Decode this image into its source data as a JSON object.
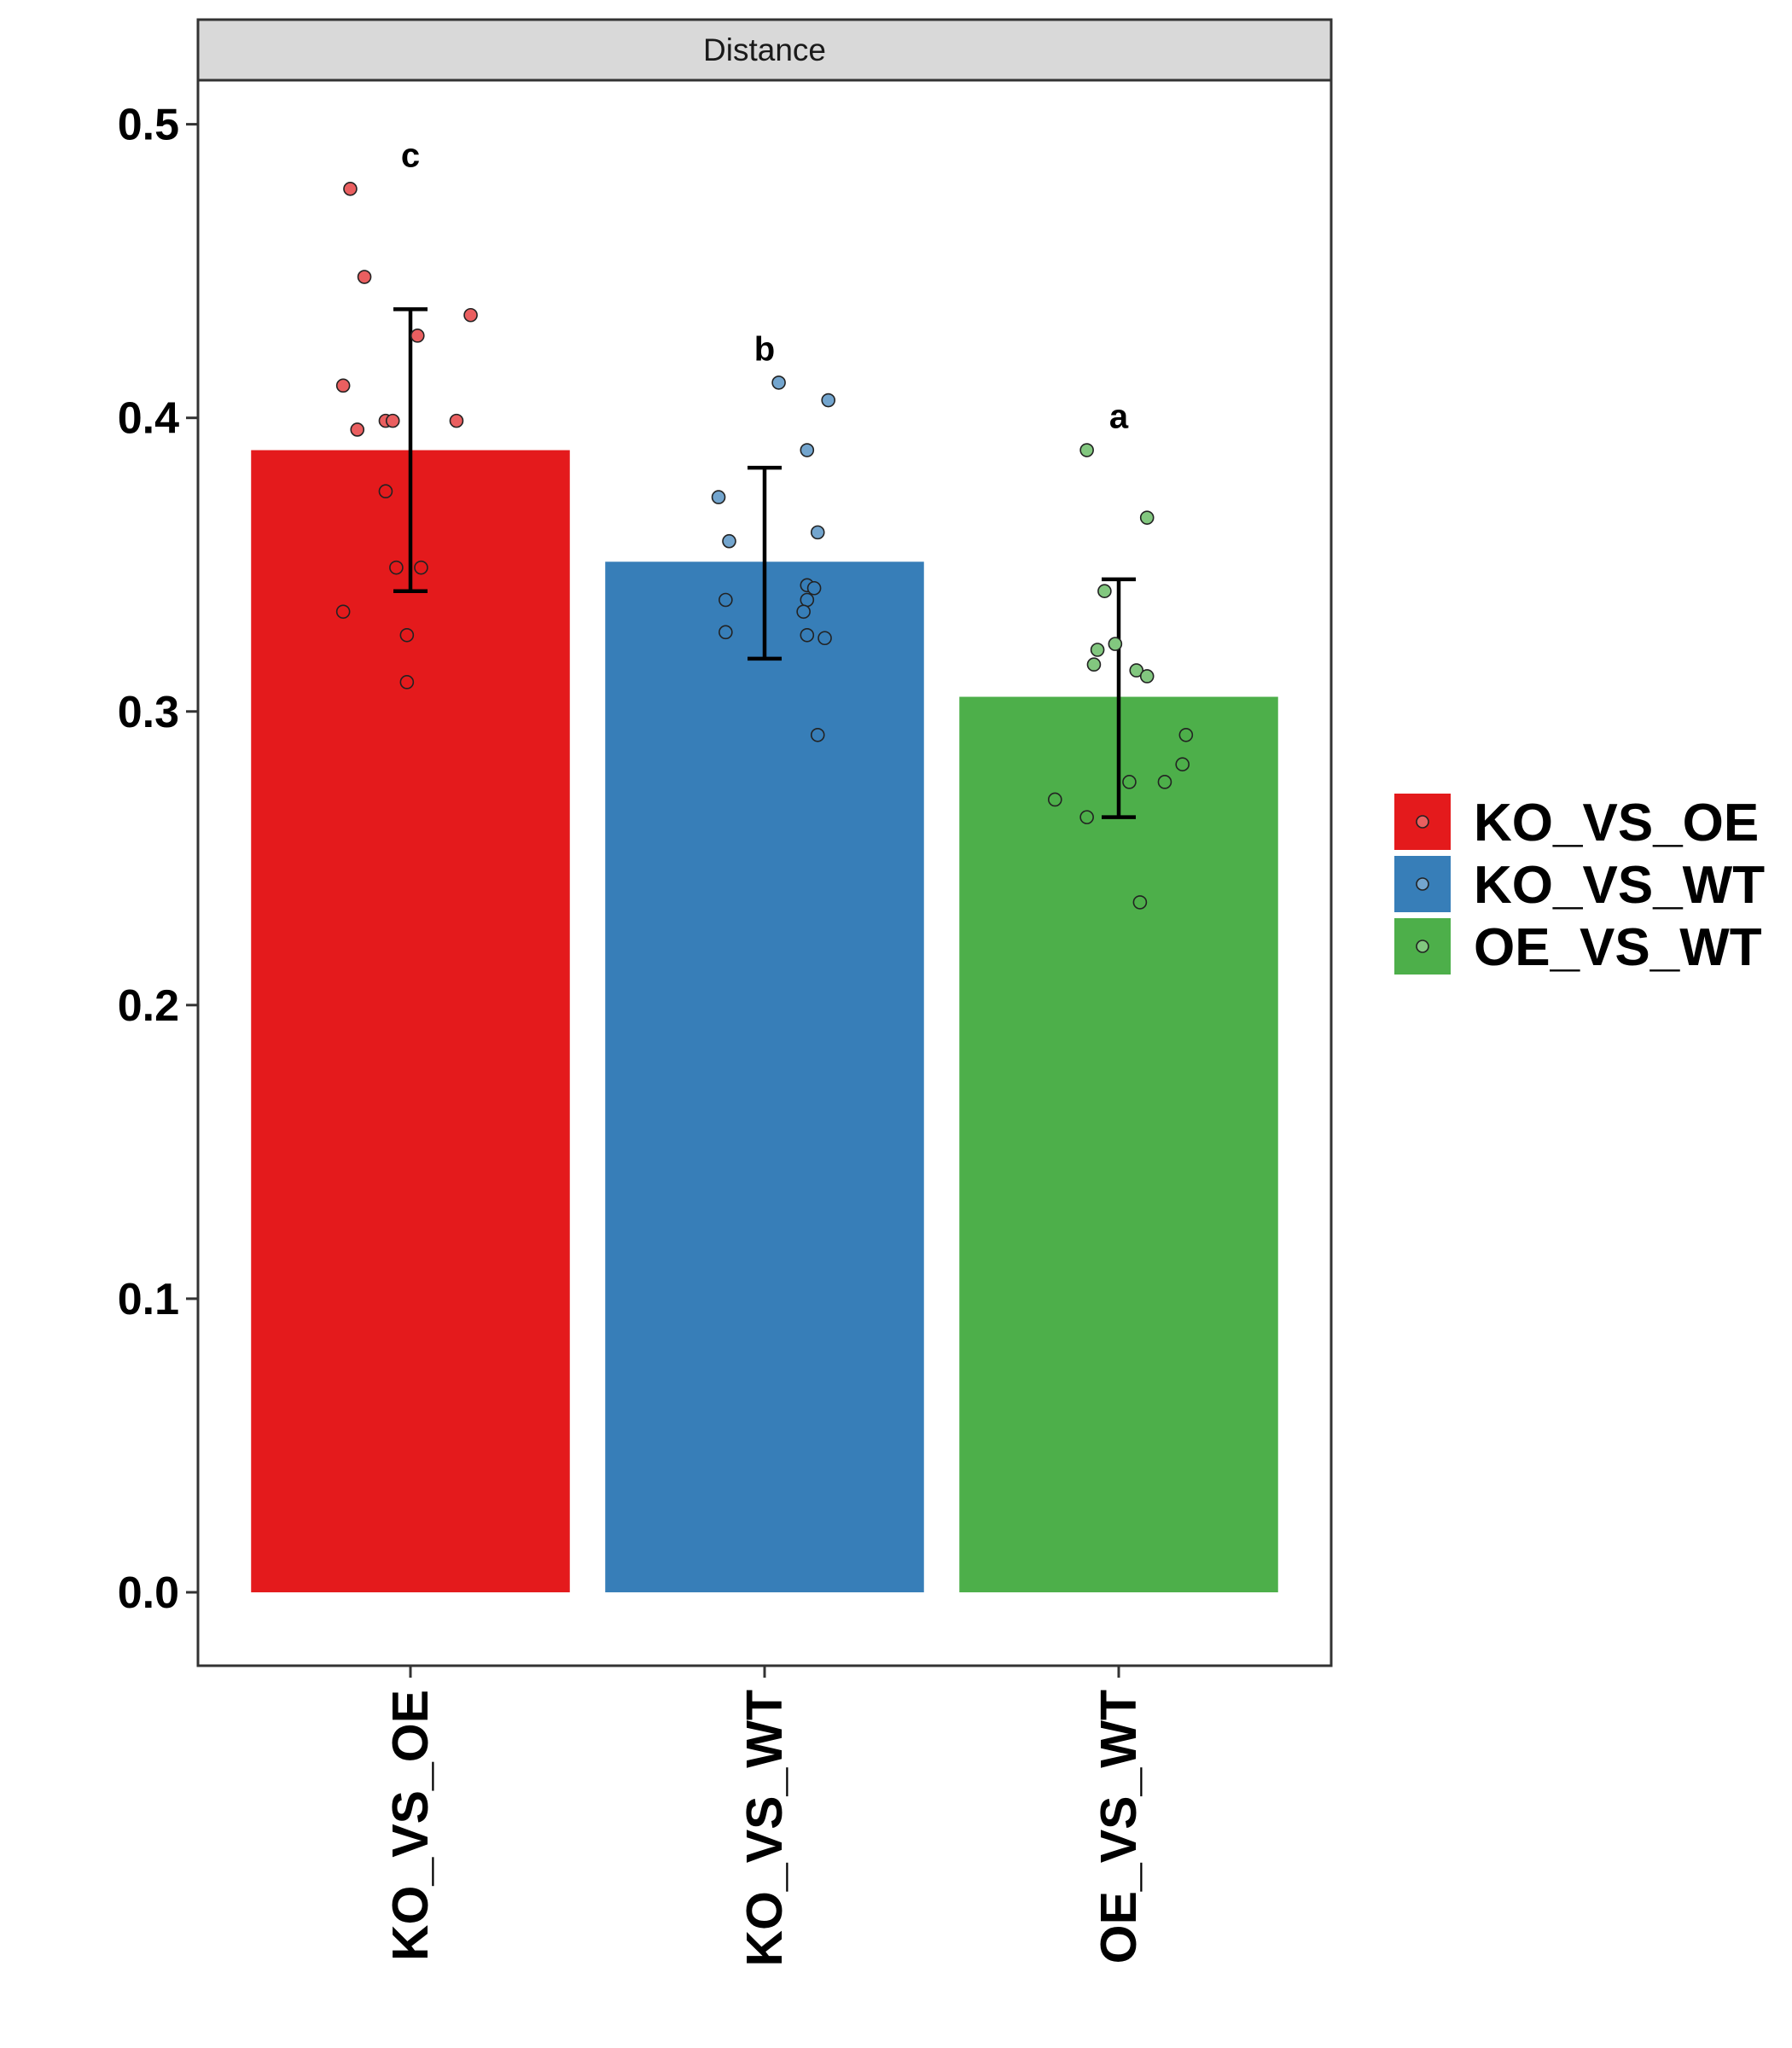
{
  "chart_data": {
    "type": "bar",
    "facet_label": "Distance",
    "categories": [
      "KO_VS_OE",
      "KO_VS_WT",
      "OE_VS_WT"
    ],
    "values": [
      0.389,
      0.351,
      0.305
    ],
    "error": [
      {
        "low": 0.341,
        "high": 0.437
      },
      {
        "low": 0.318,
        "high": 0.383
      },
      {
        "low": 0.264,
        "high": 0.345
      }
    ],
    "significance": [
      "c",
      "b",
      "a"
    ],
    "points": [
      [
        {
          "j": -0.17,
          "y": 0.478
        },
        {
          "j": -0.13,
          "y": 0.448
        },
        {
          "j": 0.02,
          "y": 0.428
        },
        {
          "j": 0.17,
          "y": 0.435
        },
        {
          "j": -0.19,
          "y": 0.411
        },
        {
          "j": -0.15,
          "y": 0.396
        },
        {
          "j": -0.07,
          "y": 0.399
        },
        {
          "j": -0.05,
          "y": 0.399
        },
        {
          "j": 0.13,
          "y": 0.399
        },
        {
          "j": -0.07,
          "y": 0.375
        },
        {
          "j": -0.04,
          "y": 0.349
        },
        {
          "j": 0.03,
          "y": 0.349
        },
        {
          "j": -0.19,
          "y": 0.334
        },
        {
          "j": -0.01,
          "y": 0.326
        },
        {
          "j": -0.01,
          "y": 0.31
        }
      ],
      [
        {
          "j": 0.04,
          "y": 0.412
        },
        {
          "j": 0.18,
          "y": 0.406
        },
        {
          "j": 0.12,
          "y": 0.389
        },
        {
          "j": -0.13,
          "y": 0.373
        },
        {
          "j": 0.15,
          "y": 0.361
        },
        {
          "j": -0.1,
          "y": 0.358
        },
        {
          "j": 0.12,
          "y": 0.343
        },
        {
          "j": 0.14,
          "y": 0.342
        },
        {
          "j": -0.11,
          "y": 0.338
        },
        {
          "j": 0.12,
          "y": 0.338
        },
        {
          "j": 0.11,
          "y": 0.334
        },
        {
          "j": -0.11,
          "y": 0.327
        },
        {
          "j": 0.12,
          "y": 0.326
        },
        {
          "j": 0.17,
          "y": 0.325
        },
        {
          "j": 0.15,
          "y": 0.292
        }
      ],
      [
        {
          "j": -0.09,
          "y": 0.389
        },
        {
          "j": 0.08,
          "y": 0.366
        },
        {
          "j": -0.04,
          "y": 0.341
        },
        {
          "j": -0.06,
          "y": 0.321
        },
        {
          "j": -0.01,
          "y": 0.323
        },
        {
          "j": -0.07,
          "y": 0.316
        },
        {
          "j": 0.05,
          "y": 0.314
        },
        {
          "j": 0.08,
          "y": 0.312
        },
        {
          "j": 0.19,
          "y": 0.292
        },
        {
          "j": 0.18,
          "y": 0.282
        },
        {
          "j": 0.13,
          "y": 0.276
        },
        {
          "j": 0.03,
          "y": 0.276
        },
        {
          "j": -0.18,
          "y": 0.27
        },
        {
          "j": -0.09,
          "y": 0.264
        },
        {
          "j": 0.06,
          "y": 0.235
        }
      ]
    ],
    "yticks": [
      "0.0",
      "0.1",
      "0.2",
      "0.3",
      "0.4",
      "0.5"
    ],
    "ylim": [
      -0.025,
      0.515
    ],
    "xlabel": "",
    "ylabel": "",
    "grid": false,
    "legend_position": "right",
    "colors": {
      "KO_VS_OE": "#E41A1C",
      "KO_VS_WT": "#377EB8",
      "OE_VS_WT": "#4DAF4A"
    },
    "point_colors": {
      "KO_VS_OE": "#EA5F60",
      "KO_VS_WT": "#73A5CE",
      "OE_VS_WT": "#82C77F"
    }
  }
}
